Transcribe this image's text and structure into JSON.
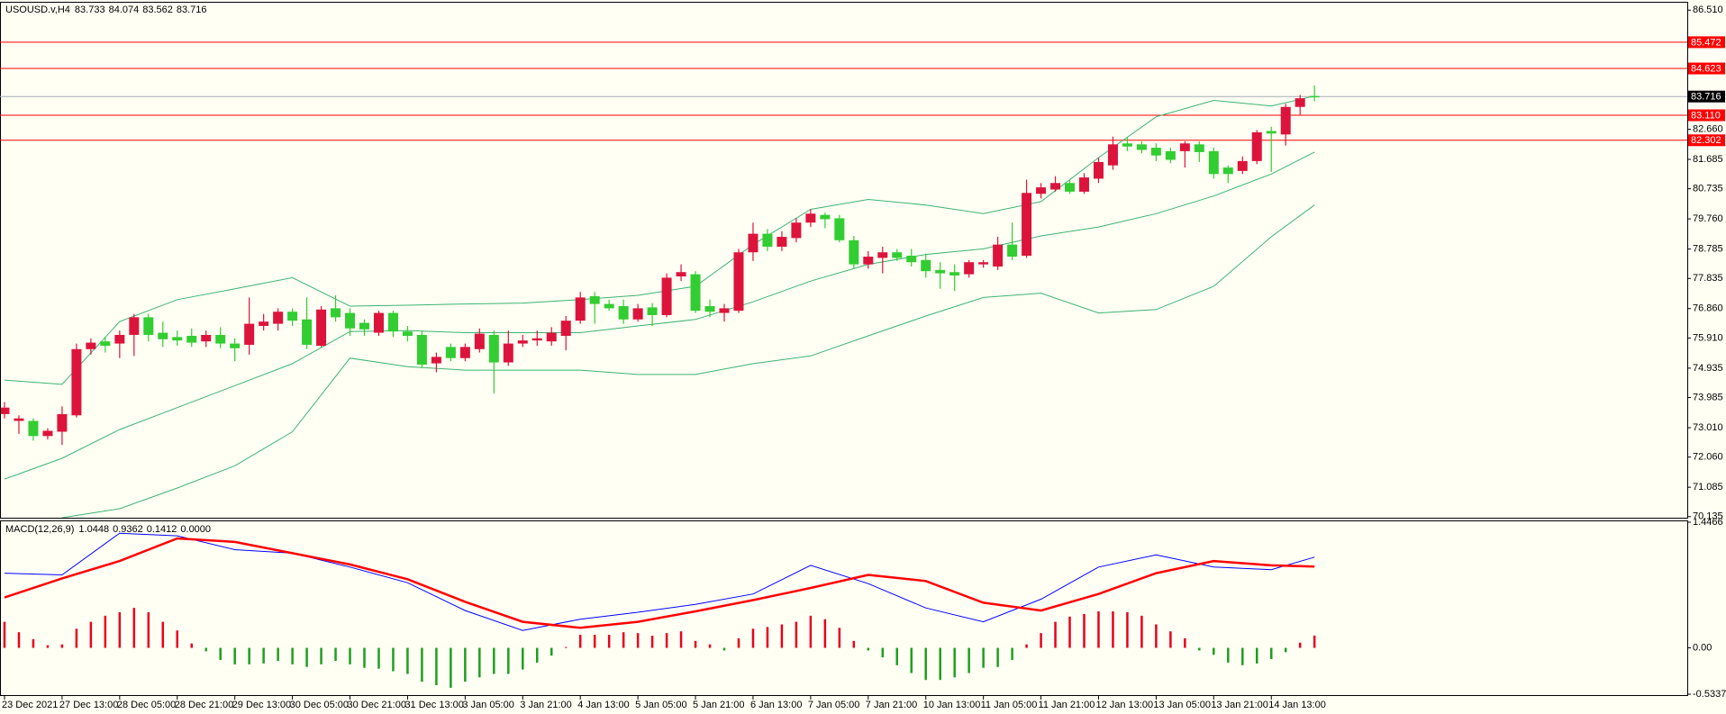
{
  "chart_data": [
    {
      "type": "candlestick",
      "title": "USOUSD.v,H4",
      "readouts": [
        "83.733",
        "84.074",
        "83.562",
        "83.716"
      ],
      "categories": [
        "23 Dec 2021",
        null,
        null,
        null,
        "27 Dec 13:00",
        null,
        null,
        null,
        "28 Dec 05:00",
        null,
        null,
        null,
        "28 Dec 21:00",
        null,
        null,
        null,
        "29 Dec 13:00",
        null,
        null,
        null,
        "30 Dec 05:00",
        null,
        null,
        null,
        "30 Dec 21:00",
        null,
        null,
        null,
        "31 Dec 13:00",
        null,
        null,
        null,
        "3 Jan 05:00",
        null,
        null,
        null,
        "3 Jan 21:00",
        null,
        null,
        null,
        "4 Jan 13:00",
        null,
        null,
        null,
        "5 Jan 05:00",
        null,
        null,
        null,
        "5 Jan 21:00",
        null,
        null,
        null,
        "6 Jan 13:00",
        null,
        null,
        null,
        "7 Jan 05:00",
        null,
        null,
        null,
        "7 Jan 21:00",
        null,
        null,
        null,
        "10 Jan 13:00",
        null,
        null,
        null,
        "11 Jan 05:00",
        null,
        null,
        null,
        "11 Jan 21:00",
        null,
        null,
        null,
        "12 Jan 13:00",
        null,
        null,
        null,
        "13 Jan 05:00",
        null,
        null,
        null,
        "13 Jan 21:00",
        null,
        null,
        null,
        "14 Jan 13:00",
        null,
        null,
        null
      ],
      "open": [
        73.45,
        73.23,
        73.23,
        72.74,
        72.88,
        73.41,
        75.55,
        75.8,
        75.73,
        76.01,
        76.58,
        76.08,
        75.94,
        75.98,
        75.8,
        76.01,
        75.73,
        75.69,
        76.3,
        76.37,
        76.76,
        76.51,
        75.66,
        76.87,
        76.72,
        76.4,
        76.08,
        76.72,
        76.12,
        76.01,
        75.09,
        75.62,
        75.26,
        75.55,
        76.01,
        75.12,
        75.73,
        75.83,
        75.8,
        75.98,
        76.47,
        77.26,
        77.01,
        76.94,
        76.51,
        76.9,
        76.65,
        77.9,
        77.97,
        76.94,
        76.72,
        76.79,
        78.68,
        79.28,
        78.86,
        79.14,
        79.64,
        79.89,
        79.78,
        79.07,
        78.29,
        78.5,
        78.68,
        78.57,
        78.43,
        78.11,
        78.04,
        77.97,
        78.29,
        78.22,
        78.93,
        78.57,
        80.57,
        80.71,
        80.92,
        80.64,
        81.06,
        81.49,
        82.2,
        82.17,
        82.06,
        81.95,
        81.95,
        82.17,
        81.95,
        81.42,
        81.31,
        81.63,
        82.6,
        82.49,
        83.38,
        83.733
      ],
      "high": [
        73.84,
        73.41,
        73.31,
        72.99,
        73.7,
        75.73,
        75.9,
        75.94,
        76.15,
        76.69,
        76.69,
        76.44,
        76.15,
        76.22,
        76.15,
        76.26,
        75.9,
        77.22,
        76.69,
        76.87,
        76.87,
        77.22,
        76.94,
        77.29,
        76.87,
        76.51,
        76.79,
        76.79,
        76.3,
        76.15,
        75.44,
        75.73,
        75.73,
        76.22,
        76.15,
        76.15,
        76.01,
        76.15,
        76.26,
        76.62,
        77.4,
        77.4,
        77.15,
        77.15,
        77.01,
        77.04,
        78.0,
        78.29,
        78.07,
        77.15,
        77.01,
        78.79,
        79.64,
        79.43,
        79.36,
        79.78,
        80.07,
        79.96,
        79.89,
        79.21,
        78.72,
        78.86,
        78.79,
        78.79,
        78.64,
        78.36,
        78.29,
        78.43,
        78.43,
        79.18,
        79.64,
        81.03,
        80.92,
        81.14,
        81.03,
        81.24,
        81.74,
        82.42,
        82.38,
        82.27,
        82.2,
        82.06,
        82.27,
        82.27,
        82.06,
        81.49,
        81.78,
        82.63,
        82.74,
        83.48,
        83.77,
        84.074
      ],
      "low": [
        73.31,
        72.81,
        72.59,
        72.63,
        72.45,
        73.34,
        75.37,
        75.44,
        75.26,
        75.33,
        75.8,
        75.62,
        75.66,
        75.62,
        75.62,
        75.58,
        75.16,
        75.37,
        76.15,
        76.15,
        76.3,
        75.55,
        75.62,
        76.44,
        75.98,
        75.98,
        75.98,
        75.94,
        75.8,
        74.94,
        74.8,
        75.16,
        75.16,
        75.44,
        74.12,
        75.01,
        75.62,
        75.66,
        75.66,
        75.51,
        76.37,
        76.37,
        76.79,
        76.37,
        76.44,
        76.3,
        76.58,
        77.75,
        76.72,
        76.58,
        76.44,
        76.72,
        78.4,
        78.72,
        78.72,
        79.0,
        79.5,
        79.46,
        79.0,
        78.15,
        78.15,
        78.0,
        78.4,
        78.22,
        77.86,
        77.5,
        77.43,
        77.86,
        78.18,
        78.11,
        78.43,
        78.5,
        80.42,
        80.64,
        80.57,
        80.57,
        80.92,
        81.35,
        81.95,
        81.88,
        81.63,
        81.56,
        81.42,
        81.6,
        81.06,
        80.92,
        81.21,
        81.53,
        81.28,
        82.13,
        83.13,
        83.562
      ],
      "close": [
        73.66,
        73.31,
        72.74,
        72.91,
        73.45,
        75.55,
        75.76,
        75.66,
        76.01,
        76.58,
        76.01,
        75.87,
        75.83,
        75.76,
        76.01,
        75.73,
        75.58,
        76.37,
        76.44,
        76.76,
        76.47,
        75.69,
        76.83,
        76.58,
        76.22,
        76.19,
        76.72,
        76.12,
        75.98,
        75.05,
        75.3,
        75.26,
        75.62,
        76.05,
        75.12,
        75.73,
        75.83,
        75.9,
        76.08,
        76.47,
        77.22,
        77.01,
        76.87,
        76.51,
        76.87,
        76.65,
        77.86,
        78.04,
        76.79,
        76.76,
        76.87,
        78.68,
        79.28,
        78.86,
        79.18,
        79.64,
        79.93,
        79.75,
        79.07,
        78.29,
        78.54,
        78.68,
        78.5,
        78.36,
        78.07,
        78.0,
        77.93,
        78.36,
        78.36,
        78.93,
        78.54,
        80.6,
        80.78,
        80.92,
        80.64,
        81.1,
        81.6,
        82.17,
        82.1,
        81.99,
        81.81,
        81.67,
        82.2,
        81.92,
        81.21,
        81.21,
        81.63,
        82.56,
        82.52,
        83.38,
        83.66,
        83.716
      ],
      "up_color": "#dc143c",
      "down_color": "#32cd32",
      "bands": [
        {
          "color": "#3cb371",
          "x": [
            0,
            4,
            8,
            12,
            16,
            20,
            24,
            28,
            32,
            36,
            40,
            44,
            48,
            52,
            56,
            60,
            64,
            68,
            72,
            76,
            80,
            84,
            88,
            91
          ],
          "values": [
            74.55,
            74.41,
            76.44,
            77.15,
            77.5,
            77.86,
            76.94,
            76.97,
            77.01,
            77.04,
            77.15,
            77.29,
            77.58,
            78.93,
            80.07,
            80.39,
            80.21,
            79.93,
            80.32,
            81.74,
            83.06,
            83.59,
            83.41,
            83.73
          ]
        },
        {
          "color": "#3cb371",
          "x": [
            0,
            4,
            8,
            12,
            16,
            20,
            24,
            28,
            32,
            36,
            40,
            44,
            48,
            52,
            56,
            60,
            64,
            68,
            72,
            76,
            80,
            84,
            88,
            91
          ],
          "values": [
            71.35,
            72.02,
            72.95,
            73.66,
            74.37,
            75.08,
            76.12,
            76.15,
            76.08,
            76.08,
            76.08,
            76.3,
            76.51,
            77.08,
            77.75,
            78.29,
            78.61,
            78.79,
            79.21,
            79.5,
            79.93,
            80.5,
            81.21,
            81.92
          ]
        },
        {
          "color": "#3cb371",
          "x": [
            4,
            8,
            12,
            16,
            20,
            24,
            28,
            32,
            36,
            40,
            44,
            48,
            52,
            56,
            60,
            64,
            68,
            72,
            76,
            80,
            84,
            88,
            91
          ],
          "values": [
            70.1,
            70.39,
            71.06,
            71.78,
            72.88,
            75.26,
            74.98,
            74.87,
            74.87,
            74.87,
            74.73,
            74.73,
            75.08,
            75.33,
            75.98,
            76.62,
            77.22,
            77.36,
            76.72,
            76.83,
            77.58,
            79.18,
            80.21
          ]
        }
      ],
      "levels": [
        85.472,
        84.623,
        {
          "value": 83.11,
          "label": "83.110"
        },
        82.302
      ],
      "level_color": "#ff0000",
      "current_price": 83.716,
      "current_color": "#000000",
      "ylim": [
        70.1,
        86.72
      ],
      "yticks": [
        {
          "value": 86.51,
          "label": "86.510"
        },
        {
          "value": 82.66,
          "label": "82.660"
        },
        81.685,
        {
          "value": 80.735,
          "label": "80.735"
        },
        {
          "value": 79.76,
          "label": "79.760"
        },
        78.785,
        77.835,
        {
          "value": 76.86,
          "label": "76.860"
        },
        {
          "value": 75.91,
          "label": "75.910"
        },
        74.935,
        73.985,
        {
          "value": 73.01,
          "label": "73.010"
        },
        {
          "value": 72.06,
          "label": "72.060"
        },
        71.085,
        70.135
      ],
      "grid": false
    },
    {
      "type": "macd",
      "title": "MACD(12,26,9)",
      "readouts": [
        "1.0448",
        "0.9362",
        "0.1412",
        "0.0000"
      ],
      "histogram": {
        "values": [
          0.3,
          0.18,
          0.1,
          0.03,
          0.04,
          0.22,
          0.3,
          0.37,
          0.41,
          0.46,
          0.41,
          0.3,
          0.2,
          0.05,
          -0.04,
          -0.14,
          -0.19,
          -0.19,
          -0.18,
          -0.15,
          -0.19,
          -0.22,
          -0.19,
          -0.15,
          -0.19,
          -0.23,
          -0.24,
          -0.27,
          -0.3,
          -0.39,
          -0.43,
          -0.46,
          -0.39,
          -0.34,
          -0.3,
          -0.3,
          -0.25,
          -0.17,
          -0.09,
          0.01,
          0.15,
          0.15,
          0.15,
          0.18,
          0.17,
          0.14,
          0.17,
          0.19,
          0.08,
          0.04,
          -0.03,
          0.11,
          0.22,
          0.24,
          0.27,
          0.3,
          0.37,
          0.33,
          0.23,
          0.08,
          -0.03,
          -0.11,
          -0.2,
          -0.29,
          -0.37,
          -0.37,
          -0.34,
          -0.29,
          -0.23,
          -0.22,
          -0.14,
          0.04,
          0.17,
          0.3,
          0.36,
          0.39,
          0.42,
          0.42,
          0.41,
          0.37,
          0.27,
          0.19,
          0.11,
          -0.03,
          -0.08,
          -0.17,
          -0.2,
          -0.18,
          -0.13,
          -0.05,
          0.06,
          0.1412
        ],
        "pos_color": "#e8001c",
        "neg_color": "#1e9e1e"
      },
      "lines": [
        {
          "color": "#0000ff",
          "x": [
            0,
            4,
            8,
            12,
            16,
            20,
            24,
            28,
            32,
            36,
            40,
            44,
            48,
            52,
            56,
            60,
            64,
            68,
            72,
            76,
            80,
            84,
            88,
            91
          ],
          "values": [
            0.86,
            0.84,
            1.32,
            1.29,
            1.13,
            1.09,
            0.93,
            0.75,
            0.43,
            0.2,
            0.33,
            0.41,
            0.5,
            0.62,
            0.95,
            0.74,
            0.46,
            0.3,
            0.56,
            0.93,
            1.07,
            0.93,
            0.9,
            1.0448
          ]
        },
        {
          "color": "#ff0000",
          "x": [
            0,
            4,
            8,
            12,
            16,
            20,
            24,
            28,
            32,
            36,
            40,
            44,
            48,
            52,
            56,
            60,
            64,
            68,
            72,
            76,
            80,
            84,
            88,
            91
          ],
          "values": [
            0.58,
            0.8,
            1.0,
            1.26,
            1.22,
            1.09,
            0.96,
            0.79,
            0.53,
            0.3,
            0.23,
            0.3,
            0.42,
            0.55,
            0.69,
            0.84,
            0.77,
            0.52,
            0.43,
            0.62,
            0.86,
            1.0,
            0.95,
            0.9362
          ]
        }
      ],
      "ylim": [
        -0.5337,
        1.4466
      ],
      "yticks": [
        1.4466,
        {
          "value": 0,
          "label": "0.00"
        },
        -0.5337
      ]
    }
  ]
}
